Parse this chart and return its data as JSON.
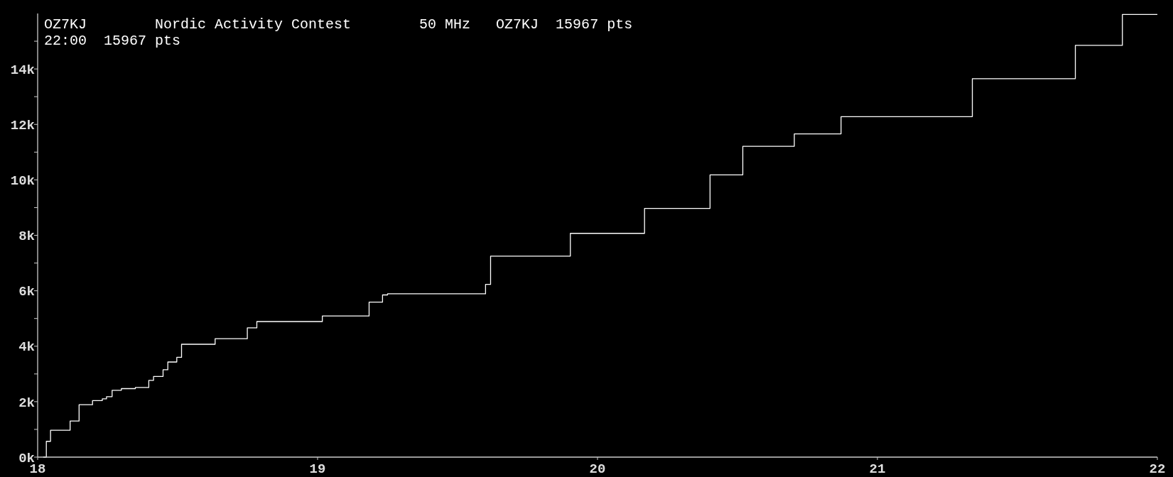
{
  "chart_data": {
    "type": "step",
    "title": "OZ7KJ        Nordic Activity Contest        50 MHz   OZ7KJ  15967 pts",
    "subtitle": "22:00  15967 pts",
    "x": [
      18.02,
      18.031,
      18.046,
      18.116,
      18.148,
      18.196,
      18.231,
      18.246,
      18.266,
      18.299,
      18.349,
      18.397,
      18.414,
      18.448,
      18.465,
      18.497,
      18.514,
      18.634,
      18.749,
      18.783,
      19.017,
      19.184,
      19.232,
      19.25,
      19.6,
      19.618,
      19.903,
      20.168,
      20.402,
      20.519,
      20.703,
      20.87,
      21.339,
      21.707,
      21.875,
      22
    ],
    "series": [
      {
        "color": "#ffffff",
        "values": [
          0,
          570,
          970,
          1300,
          1890,
          2040,
          2100,
          2180,
          2410,
          2470,
          2510,
          2770,
          2910,
          3150,
          3430,
          3600,
          4070,
          4270,
          4660,
          4890,
          5090,
          5590,
          5850,
          5890,
          6230,
          7250,
          8070,
          8970,
          10180,
          11210,
          11660,
          12280,
          13650,
          14850,
          15967,
          15967
        ]
      }
    ],
    "xlim": [
      18,
      22
    ],
    "xticks": [
      18,
      19,
      20,
      21,
      22
    ],
    "ylim": [
      0,
      16000
    ],
    "yticks": [
      {
        "value": 0,
        "label": "0k"
      },
      {
        "value": 1000,
        "label": null
      },
      {
        "value": 2000,
        "label": "2k"
      },
      {
        "value": 3000,
        "label": null
      },
      {
        "value": 4000,
        "label": "4k"
      },
      {
        "value": 5000,
        "label": null
      },
      {
        "value": 6000,
        "label": "6k"
      },
      {
        "value": 7000,
        "label": null
      },
      {
        "value": 8000,
        "label": "8k"
      },
      {
        "value": 9000,
        "label": null
      },
      {
        "value": 10000,
        "label": "10k"
      },
      {
        "value": 11000,
        "label": null
      },
      {
        "value": 12000,
        "label": "12k"
      },
      {
        "value": 13000,
        "label": null
      },
      {
        "value": 14000,
        "label": "14k"
      },
      {
        "value": 15000,
        "label": null
      }
    ],
    "grid": false
  }
}
